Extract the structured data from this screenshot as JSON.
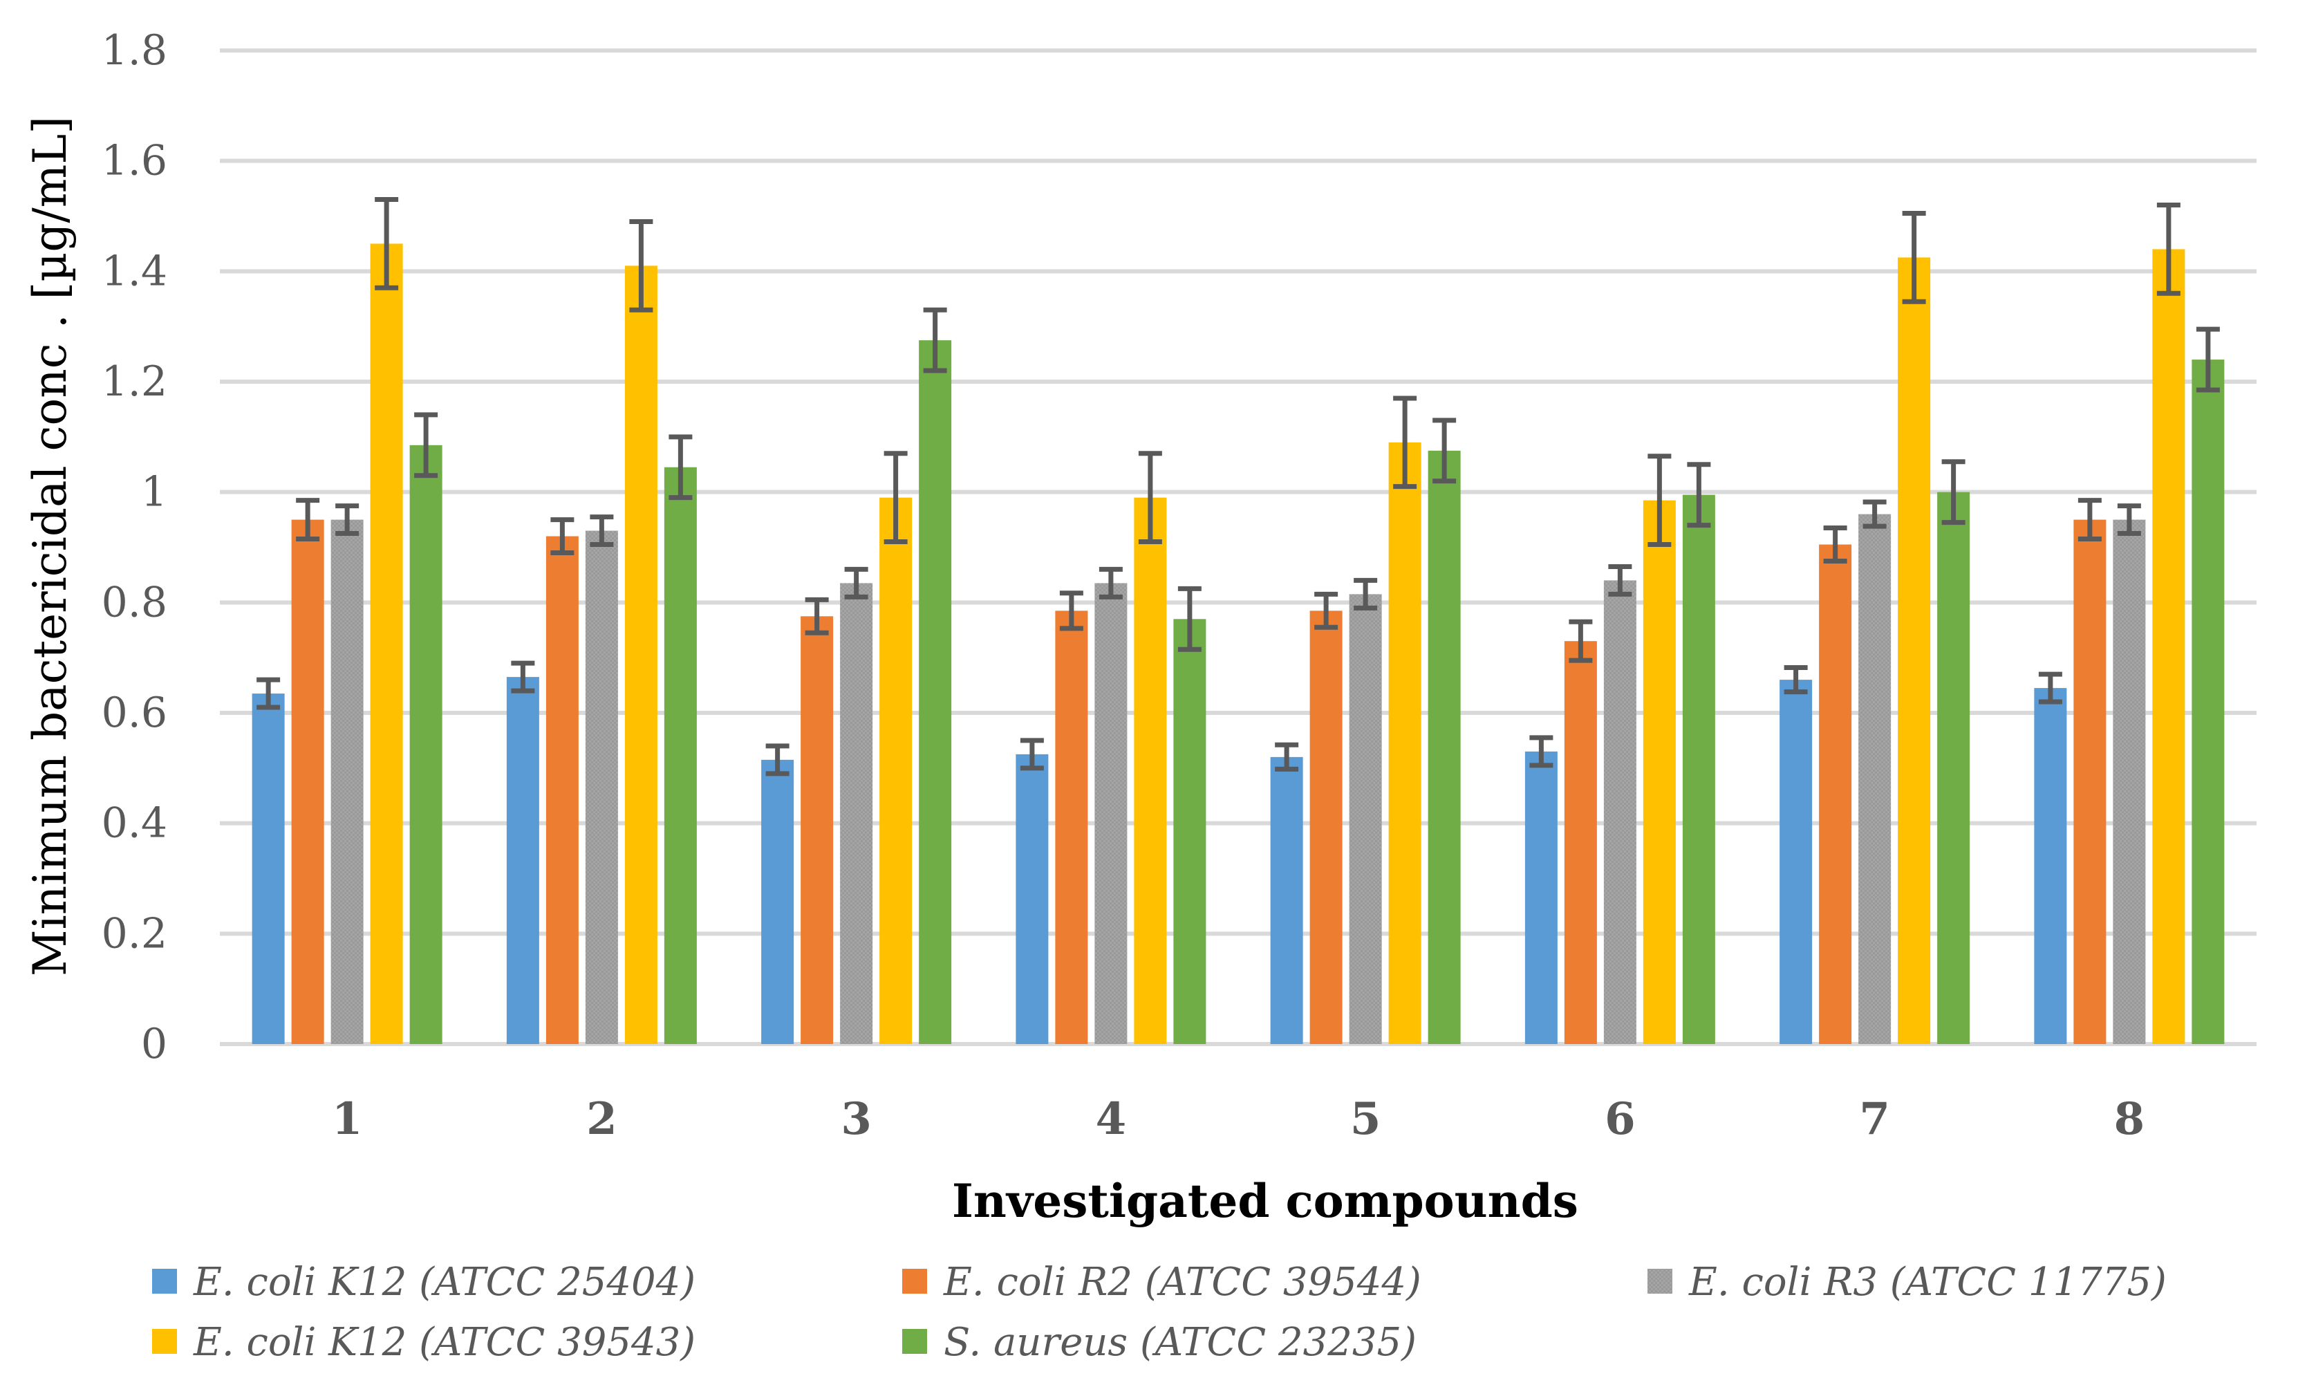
{
  "chart_data": {
    "type": "bar",
    "title": "",
    "xlabel": "Investigated compounds",
    "ylabel": "Minimum bactericidal conc . [µg/mL]",
    "ylim": [
      0,
      1.8
    ],
    "yticks": [
      "0",
      "0.2",
      "0.4",
      "0.6",
      "0.8",
      "1",
      "1.2",
      "1.4",
      "1.6",
      "1.8"
    ],
    "grid": true,
    "legend_position": "bottom",
    "categories": [
      "1",
      "2",
      "3",
      "4",
      "5",
      "6",
      "7",
      "8"
    ],
    "series": [
      {
        "name": "E. coli K12 (ATCC 25404)",
        "color": "#5B9BD5",
        "values": [
          0.635,
          0.665,
          0.515,
          0.525,
          0.52,
          0.53,
          0.66,
          0.645
        ],
        "errors": [
          0.025,
          0.025,
          0.025,
          0.025,
          0.022,
          0.025,
          0.022,
          0.025
        ]
      },
      {
        "name": "E. coli R2 (ATCC 39544)",
        "color": "#ED7D31",
        "values": [
          0.95,
          0.92,
          0.775,
          0.785,
          0.785,
          0.73,
          0.905,
          0.95
        ],
        "errors": [
          0.035,
          0.03,
          0.03,
          0.032,
          0.03,
          0.035,
          0.03,
          0.035
        ]
      },
      {
        "name": "E. coli R3 (ATCC 11775)",
        "color": "#A5A5A5",
        "values": [
          0.95,
          0.93,
          0.835,
          0.835,
          0.815,
          0.84,
          0.96,
          0.95
        ],
        "errors": [
          0.025,
          0.025,
          0.025,
          0.025,
          0.025,
          0.025,
          0.022,
          0.025
        ]
      },
      {
        "name": "E. coli K12 (ATCC 39543)",
        "color": "#FFC000",
        "values": [
          1.45,
          1.41,
          0.99,
          0.99,
          1.09,
          0.985,
          1.425,
          1.44
        ],
        "errors": [
          0.08,
          0.08,
          0.08,
          0.08,
          0.08,
          0.08,
          0.08,
          0.08
        ]
      },
      {
        "name": "S. aureus (ATCC 23235)",
        "color": "#70AD47",
        "values": [
          1.085,
          1.045,
          1.275,
          0.77,
          1.075,
          0.995,
          1.0,
          1.24
        ],
        "errors": [
          0.055,
          0.055,
          0.055,
          0.055,
          0.055,
          0.055,
          0.055,
          0.055
        ]
      }
    ]
  }
}
